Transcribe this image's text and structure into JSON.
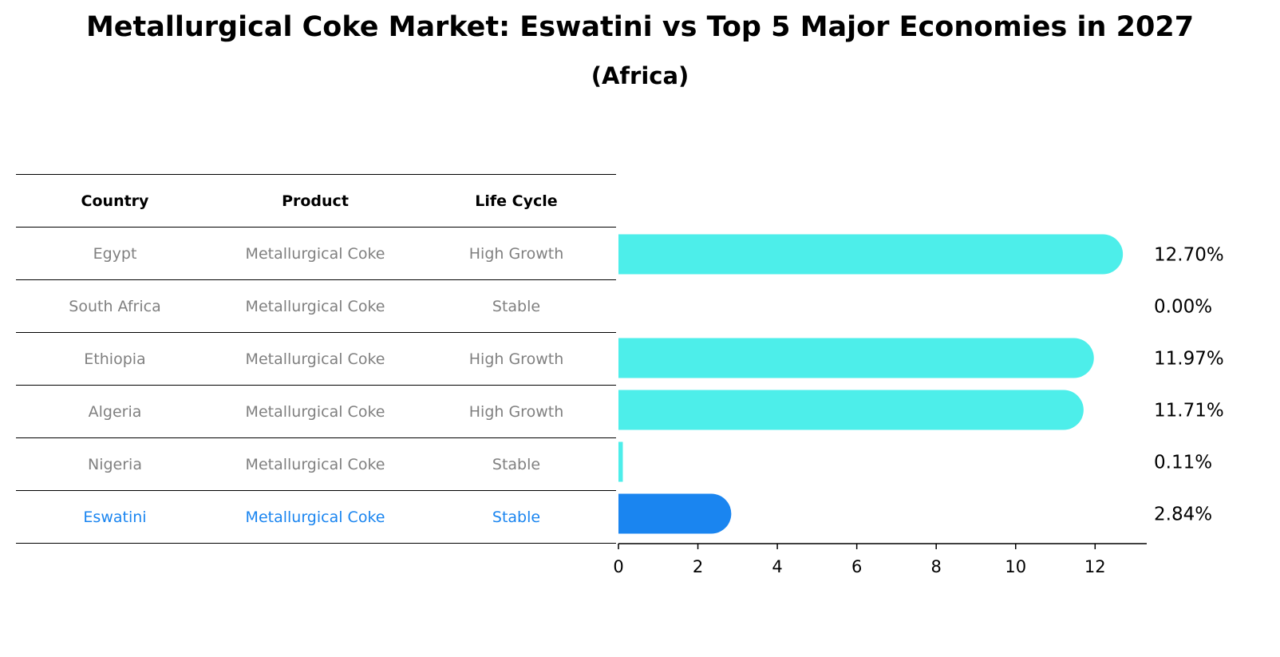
{
  "title": "Metallurgical Coke Market: Eswatini vs Top 5 Major Economies in 2027",
  "subtitle": "(Africa)",
  "table": {
    "headers": [
      "Country",
      "Product",
      "Life Cycle"
    ],
    "rows": [
      [
        "Egypt",
        "Metallurgical Coke",
        "High Growth"
      ],
      [
        "South Africa",
        "Metallurgical Coke",
        "Stable"
      ],
      [
        "Ethiopia",
        "Metallurgical Coke",
        "High Growth"
      ],
      [
        "Algeria",
        "Metallurgical Coke",
        "High Growth"
      ],
      [
        "Nigeria",
        "Metallurgical Coke",
        "Stable"
      ],
      [
        "Eswatini",
        "Metallurgical Coke",
        "Stable"
      ]
    ],
    "highlight_row": 5
  },
  "colors": {
    "bar": "#4DEEEA",
    "highlight": "#1A85F0",
    "muted_text": "#808080"
  },
  "chart_data": {
    "type": "bar",
    "orientation": "horizontal",
    "categories": [
      "Egypt",
      "South Africa",
      "Ethiopia",
      "Algeria",
      "Nigeria",
      "Eswatini"
    ],
    "values": [
      12.7,
      0.0,
      11.97,
      11.71,
      0.11,
      2.84
    ],
    "value_labels": [
      "12.70%",
      "0.00%",
      "11.97%",
      "11.71%",
      "0.11%",
      "2.84%"
    ],
    "highlight": "Eswatini",
    "xlim": [
      0,
      13.3
    ],
    "xticks": [
      0,
      2,
      4,
      6,
      8,
      10,
      12
    ],
    "xlabel": "",
    "ylabel": ""
  }
}
